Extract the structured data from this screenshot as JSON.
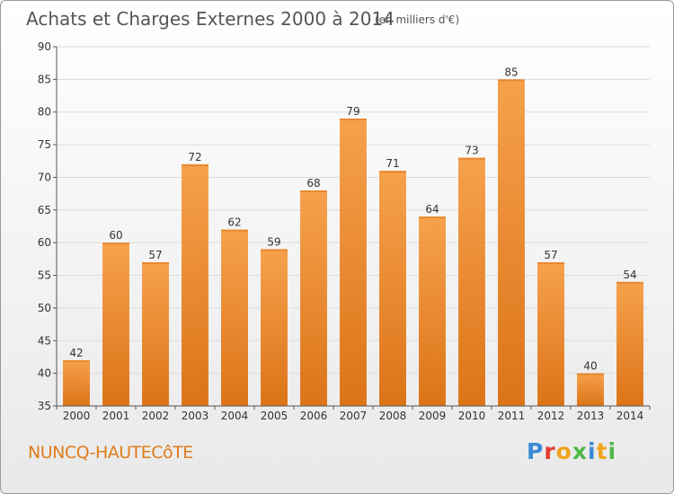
{
  "header": {
    "title": "Achats et Charges Externes 2000 à 2014",
    "unit": "(en milliers d'€)"
  },
  "footer": {
    "place_name": "NUNCQ-HAUTECôTE",
    "brand_letters": [
      "P",
      "r",
      "o",
      "x",
      "i",
      "t",
      "i"
    ],
    "brand_colors": [
      "#3a8ad6",
      "#e63b2e",
      "#f0a31c",
      "#4fb848",
      "#3a8ad6",
      "#f0a31c",
      "#4fb848"
    ]
  },
  "colors": {
    "bar_light": "#f6a14c",
    "bar_dark": "#dc7418",
    "grid": "#dcdcdc",
    "axis": "#555555",
    "title": "#555555",
    "place_name": "#e07b1a"
  },
  "chart_data": {
    "type": "bar",
    "title": "Achats et Charges Externes 2000 à 2014",
    "subtitle": "(en milliers d'€)",
    "xlabel": "",
    "ylabel": "",
    "categories": [
      "2000",
      "2001",
      "2002",
      "2003",
      "2004",
      "2005",
      "2006",
      "2007",
      "2008",
      "2009",
      "2010",
      "2011",
      "2012",
      "2013",
      "2014"
    ],
    "values": [
      42,
      60,
      57,
      72,
      62,
      59,
      68,
      79,
      71,
      64,
      73,
      85,
      57,
      40,
      54
    ],
    "ylim": [
      35,
      90
    ],
    "yticks": [
      35,
      40,
      45,
      50,
      55,
      60,
      65,
      70,
      75,
      80,
      85,
      90
    ],
    "grid": true,
    "legend": "none"
  }
}
